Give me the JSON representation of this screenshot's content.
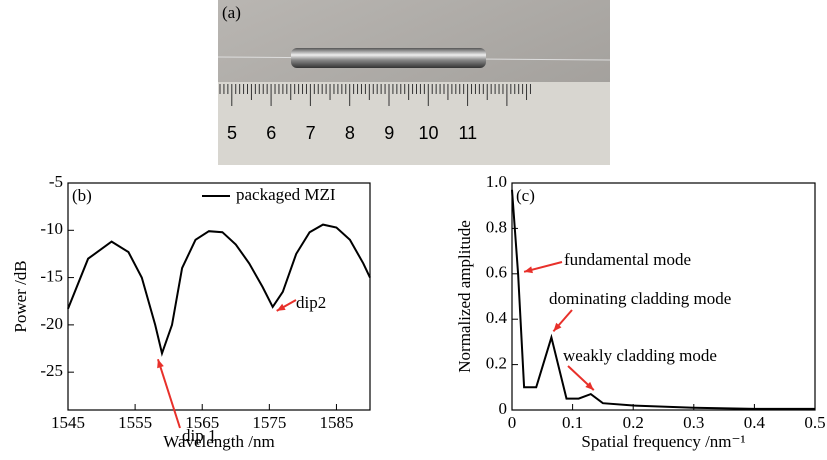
{
  "photo": {
    "label": "(a)",
    "ruler_labels": [
      "5",
      "6",
      "7",
      "8",
      "9",
      "10",
      "11"
    ]
  },
  "chart_data": [
    {
      "type": "line",
      "panel_label": "(b)",
      "x_label": "Wavelength /nm",
      "y_label": "Power /dB",
      "xlim": [
        1545,
        1590
      ],
      "xticks": [
        1545,
        1555,
        1565,
        1575,
        1585
      ],
      "ylim": [
        -29,
        -5
      ],
      "yticks": [
        -5,
        -10,
        -15,
        -20,
        -25
      ],
      "legend": "top-right",
      "x": [
        1545,
        1548,
        1551.5,
        1554,
        1556,
        1558,
        1559,
        1560.5,
        1562,
        1564,
        1566,
        1568,
        1570,
        1572,
        1574,
        1575.5,
        1577,
        1579,
        1581,
        1583,
        1585,
        1587,
        1589,
        1590
      ],
      "series": [
        {
          "name": "packaged MZI",
          "color": "#000000",
          "values": [
            -18.3,
            -13,
            -11.2,
            -12.3,
            -15,
            -20,
            -23,
            -20,
            -14,
            -11,
            -10.1,
            -10.2,
            -11.5,
            -13.5,
            -16,
            -18.1,
            -16.5,
            -12.5,
            -10.2,
            -9.4,
            -9.7,
            -11,
            -13.5,
            -15
          ]
        }
      ],
      "annotations": [
        "dip 1",
        "dip2"
      ]
    },
    {
      "type": "line",
      "panel_label": "(c)",
      "x_label": "Spatial frequency /nm⁻¹",
      "y_label": "Normalized amplitude",
      "xlim": [
        0,
        0.5
      ],
      "xticks": [
        0,
        0.1,
        0.2,
        0.3,
        0.4,
        0.5
      ],
      "ylim": [
        0,
        1
      ],
      "yticks": [
        0,
        0.2,
        0.4,
        0.6,
        0.8,
        {
          "value": 1,
          "label": "1.0"
        }
      ],
      "x": [
        0,
        0.01,
        0.02,
        0.04,
        0.065,
        0.09,
        0.11,
        0.13,
        0.15,
        0.2,
        0.3,
        0.4,
        0.5
      ],
      "series": [
        {
          "name": null,
          "color": "#000000",
          "values": [
            0.97,
            0.6,
            0.1,
            0.1,
            0.32,
            0.05,
            0.05,
            0.07,
            0.03,
            0.02,
            0.01,
            0.005,
            0.005
          ]
        }
      ],
      "annotations": [
        "fundamental mode",
        "dominating cladding mode",
        "weakly cladding mode"
      ]
    }
  ]
}
